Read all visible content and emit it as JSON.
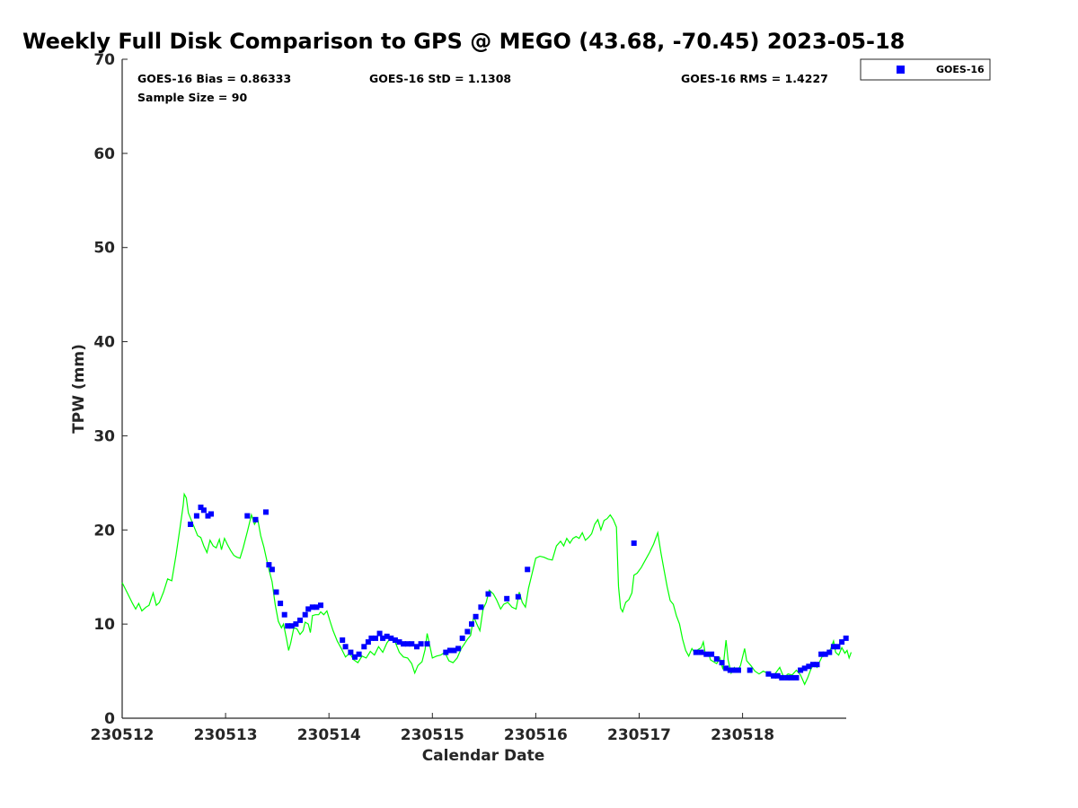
{
  "chart_data": {
    "type": "scatter",
    "title": "Weekly Full Disk Comparison to GPS @ MEGO (43.68, -70.45) 2023-05-18",
    "xlabel": "Calendar Date",
    "ylabel": "TPW (mm)",
    "xlim": [
      0,
      7
    ],
    "ylim": [
      0,
      70
    ],
    "x_ticks": [
      0,
      1,
      2,
      3,
      4,
      5,
      6
    ],
    "x_tick_labels": [
      "230512",
      "230513",
      "230514",
      "230515",
      "230516",
      "230517",
      "230518"
    ],
    "y_ticks": [
      0,
      10,
      20,
      30,
      40,
      50,
      60,
      70
    ],
    "y_tick_labels": [
      "0",
      "10",
      "20",
      "30",
      "40",
      "50",
      "60",
      "70"
    ],
    "grid": false,
    "legend_position": "outside-top-right",
    "stats": {
      "bias": "GOES-16 Bias = 0.86333",
      "std": "GOES-16 StD = 1.1308",
      "rms": "GOES-16 RMS = 1.4227",
      "sample_size": "Sample Size = 90"
    },
    "series": [
      {
        "name": "GOES-16",
        "kind": "points",
        "color": "#0000ff",
        "marker": "square",
        "points": [
          [
            0.66,
            20.6
          ],
          [
            0.72,
            21.5
          ],
          [
            0.76,
            22.4
          ],
          [
            0.79,
            22.1
          ],
          [
            0.83,
            21.5
          ],
          [
            0.86,
            21.7
          ],
          [
            1.21,
            21.5
          ],
          [
            1.29,
            21.1
          ],
          [
            1.39,
            21.9
          ],
          [
            1.42,
            16.3
          ],
          [
            1.45,
            15.8
          ],
          [
            1.49,
            13.4
          ],
          [
            1.53,
            12.2
          ],
          [
            1.57,
            11.0
          ],
          [
            1.6,
            9.8
          ],
          [
            1.64,
            9.8
          ],
          [
            1.68,
            10.0
          ],
          [
            1.72,
            10.4
          ],
          [
            1.77,
            11.0
          ],
          [
            1.8,
            11.6
          ],
          [
            1.84,
            11.8
          ],
          [
            1.88,
            11.8
          ],
          [
            1.92,
            12.0
          ],
          [
            2.13,
            8.3
          ],
          [
            2.16,
            7.6
          ],
          [
            2.21,
            7.0
          ],
          [
            2.25,
            6.5
          ],
          [
            2.29,
            6.8
          ],
          [
            2.34,
            7.6
          ],
          [
            2.38,
            8.1
          ],
          [
            2.41,
            8.5
          ],
          [
            2.45,
            8.5
          ],
          [
            2.49,
            9.0
          ],
          [
            2.52,
            8.5
          ],
          [
            2.56,
            8.7
          ],
          [
            2.6,
            8.5
          ],
          [
            2.64,
            8.3
          ],
          [
            2.68,
            8.1
          ],
          [
            2.72,
            7.9
          ],
          [
            2.76,
            7.9
          ],
          [
            2.8,
            7.9
          ],
          [
            2.85,
            7.6
          ],
          [
            2.89,
            7.9
          ],
          [
            2.95,
            7.9
          ],
          [
            3.13,
            7.0
          ],
          [
            3.17,
            7.2
          ],
          [
            3.21,
            7.2
          ],
          [
            3.25,
            7.4
          ],
          [
            3.29,
            8.5
          ],
          [
            3.34,
            9.2
          ],
          [
            3.38,
            10.0
          ],
          [
            3.42,
            10.8
          ],
          [
            3.47,
            11.8
          ],
          [
            3.54,
            13.2
          ],
          [
            3.72,
            12.7
          ],
          [
            3.83,
            12.9
          ],
          [
            3.92,
            15.8
          ],
          [
            4.95,
            18.6
          ],
          [
            5.55,
            7.0
          ],
          [
            5.6,
            7.0
          ],
          [
            5.65,
            6.8
          ],
          [
            5.7,
            6.8
          ],
          [
            5.75,
            6.3
          ],
          [
            5.8,
            5.9
          ],
          [
            5.84,
            5.3
          ],
          [
            5.88,
            5.1
          ],
          [
            5.92,
            5.1
          ],
          [
            5.96,
            5.1
          ],
          [
            6.07,
            5.1
          ],
          [
            6.25,
            4.7
          ],
          [
            6.3,
            4.5
          ],
          [
            6.34,
            4.5
          ],
          [
            6.38,
            4.3
          ],
          [
            6.43,
            4.3
          ],
          [
            6.47,
            4.3
          ],
          [
            6.52,
            4.3
          ],
          [
            6.56,
            5.1
          ],
          [
            6.6,
            5.3
          ],
          [
            6.64,
            5.5
          ],
          [
            6.68,
            5.7
          ],
          [
            6.72,
            5.7
          ],
          [
            6.76,
            6.8
          ],
          [
            6.8,
            6.8
          ],
          [
            6.84,
            7.0
          ],
          [
            6.88,
            7.6
          ],
          [
            6.92,
            7.6
          ],
          [
            6.96,
            8.1
          ],
          [
            7.0,
            8.5
          ]
        ]
      },
      {
        "name": "",
        "kind": "line",
        "color": "#00ff00",
        "points": [
          [
            0.0,
            14.4
          ],
          [
            0.05,
            13.3
          ],
          [
            0.1,
            12.2
          ],
          [
            0.13,
            11.6
          ],
          [
            0.16,
            12.2
          ],
          [
            0.19,
            11.4
          ],
          [
            0.23,
            11.8
          ],
          [
            0.26,
            12.0
          ],
          [
            0.3,
            13.3
          ],
          [
            0.33,
            12.0
          ],
          [
            0.36,
            12.3
          ],
          [
            0.4,
            13.4
          ],
          [
            0.44,
            14.8
          ],
          [
            0.48,
            14.6
          ],
          [
            0.52,
            17.3
          ],
          [
            0.56,
            20.3
          ],
          [
            0.59,
            22.6
          ],
          [
            0.6,
            23.8
          ],
          [
            0.62,
            23.4
          ],
          [
            0.64,
            21.8
          ],
          [
            0.67,
            21.0
          ],
          [
            0.7,
            20.2
          ],
          [
            0.73,
            19.4
          ],
          [
            0.76,
            19.2
          ],
          [
            0.79,
            18.3
          ],
          [
            0.82,
            17.6
          ],
          [
            0.85,
            18.9
          ],
          [
            0.88,
            18.3
          ],
          [
            0.91,
            18.1
          ],
          [
            0.94,
            19.0
          ],
          [
            0.96,
            17.9
          ],
          [
            0.99,
            19.1
          ],
          [
            1.02,
            18.4
          ],
          [
            1.05,
            17.8
          ],
          [
            1.08,
            17.3
          ],
          [
            1.11,
            17.1
          ],
          [
            1.14,
            17.0
          ],
          [
            1.17,
            18.1
          ],
          [
            1.21,
            19.8
          ],
          [
            1.25,
            21.6
          ],
          [
            1.28,
            20.6
          ],
          [
            1.31,
            21.2
          ],
          [
            1.34,
            19.4
          ],
          [
            1.37,
            18.2
          ],
          [
            1.41,
            16.2
          ],
          [
            1.45,
            14.5
          ],
          [
            1.48,
            12.1
          ],
          [
            1.51,
            10.3
          ],
          [
            1.54,
            9.6
          ],
          [
            1.56,
            10.0
          ],
          [
            1.59,
            8.4
          ],
          [
            1.61,
            7.2
          ],
          [
            1.63,
            8.0
          ],
          [
            1.66,
            9.6
          ],
          [
            1.69,
            9.5
          ],
          [
            1.72,
            8.9
          ],
          [
            1.75,
            9.3
          ],
          [
            1.77,
            10.2
          ],
          [
            1.8,
            10.0
          ],
          [
            1.82,
            9.1
          ],
          [
            1.84,
            10.9
          ],
          [
            1.87,
            11.0
          ],
          [
            1.9,
            11.0
          ],
          [
            1.92,
            11.3
          ],
          [
            1.95,
            11.0
          ],
          [
            1.98,
            11.4
          ],
          [
            2.01,
            10.3
          ],
          [
            2.04,
            9.3
          ],
          [
            2.08,
            8.2
          ],
          [
            2.12,
            7.4
          ],
          [
            2.16,
            6.5
          ],
          [
            2.2,
            6.9
          ],
          [
            2.24,
            6.2
          ],
          [
            2.28,
            5.9
          ],
          [
            2.32,
            6.6
          ],
          [
            2.36,
            6.4
          ],
          [
            2.4,
            7.1
          ],
          [
            2.44,
            6.7
          ],
          [
            2.48,
            7.6
          ],
          [
            2.52,
            7.0
          ],
          [
            2.56,
            8.0
          ],
          [
            2.6,
            8.6
          ],
          [
            2.64,
            8.1
          ],
          [
            2.68,
            7.0
          ],
          [
            2.72,
            6.5
          ],
          [
            2.76,
            6.4
          ],
          [
            2.8,
            5.8
          ],
          [
            2.83,
            4.8
          ],
          [
            2.86,
            5.6
          ],
          [
            2.9,
            6.0
          ],
          [
            2.93,
            7.3
          ],
          [
            2.95,
            9.0
          ],
          [
            2.97,
            8.0
          ],
          [
            3.0,
            6.4
          ],
          [
            3.04,
            6.6
          ],
          [
            3.08,
            6.7
          ],
          [
            3.12,
            7.0
          ],
          [
            3.16,
            6.1
          ],
          [
            3.2,
            5.9
          ],
          [
            3.24,
            6.4
          ],
          [
            3.28,
            7.4
          ],
          [
            3.31,
            7.9
          ],
          [
            3.34,
            8.4
          ],
          [
            3.37,
            8.8
          ],
          [
            3.4,
            10.8
          ],
          [
            3.43,
            10.0
          ],
          [
            3.46,
            9.3
          ],
          [
            3.49,
            11.6
          ],
          [
            3.52,
            12.3
          ],
          [
            3.55,
            13.6
          ],
          [
            3.59,
            13.2
          ],
          [
            3.62,
            12.6
          ],
          [
            3.66,
            11.6
          ],
          [
            3.69,
            12.1
          ],
          [
            3.73,
            12.3
          ],
          [
            3.77,
            11.8
          ],
          [
            3.81,
            11.6
          ],
          [
            3.84,
            13.4
          ],
          [
            3.87,
            12.3
          ],
          [
            3.9,
            11.8
          ],
          [
            3.93,
            13.8
          ],
          [
            3.97,
            15.6
          ],
          [
            4.0,
            17.0
          ],
          [
            4.04,
            17.2
          ],
          [
            4.08,
            17.1
          ],
          [
            4.12,
            16.9
          ],
          [
            4.16,
            16.8
          ],
          [
            4.2,
            18.3
          ],
          [
            4.24,
            18.8
          ],
          [
            4.27,
            18.3
          ],
          [
            4.3,
            19.1
          ],
          [
            4.33,
            18.6
          ],
          [
            4.36,
            19.1
          ],
          [
            4.39,
            19.3
          ],
          [
            4.42,
            19.1
          ],
          [
            4.45,
            19.7
          ],
          [
            4.48,
            18.9
          ],
          [
            4.51,
            19.2
          ],
          [
            4.54,
            19.6
          ],
          [
            4.57,
            20.6
          ],
          [
            4.6,
            21.1
          ],
          [
            4.63,
            20.0
          ],
          [
            4.66,
            21.0
          ],
          [
            4.69,
            21.2
          ],
          [
            4.72,
            21.6
          ],
          [
            4.75,
            21.1
          ],
          [
            4.78,
            20.3
          ],
          [
            4.8,
            14.0
          ],
          [
            4.82,
            11.7
          ],
          [
            4.84,
            11.3
          ],
          [
            4.87,
            12.3
          ],
          [
            4.9,
            12.6
          ],
          [
            4.93,
            13.3
          ],
          [
            4.95,
            15.2
          ],
          [
            4.98,
            15.4
          ],
          [
            5.02,
            16.0
          ],
          [
            5.06,
            16.8
          ],
          [
            5.1,
            17.6
          ],
          [
            5.14,
            18.5
          ],
          [
            5.18,
            19.7
          ],
          [
            5.21,
            17.6
          ],
          [
            5.24,
            15.8
          ],
          [
            5.27,
            14.0
          ],
          [
            5.3,
            12.5
          ],
          [
            5.33,
            12.1
          ],
          [
            5.36,
            10.9
          ],
          [
            5.39,
            10.0
          ],
          [
            5.42,
            8.4
          ],
          [
            5.45,
            7.2
          ],
          [
            5.48,
            6.6
          ],
          [
            5.51,
            7.4
          ],
          [
            5.54,
            6.9
          ],
          [
            5.57,
            7.3
          ],
          [
            5.6,
            7.5
          ],
          [
            5.62,
            8.1
          ],
          [
            5.64,
            6.8
          ],
          [
            5.67,
            7.0
          ],
          [
            5.69,
            6.2
          ],
          [
            5.72,
            6.0
          ],
          [
            5.75,
            5.8
          ],
          [
            5.78,
            6.4
          ],
          [
            5.81,
            5.2
          ],
          [
            5.84,
            8.3
          ],
          [
            5.86,
            6.2
          ],
          [
            5.89,
            4.8
          ],
          [
            5.92,
            5.4
          ],
          [
            5.95,
            5.0
          ],
          [
            5.98,
            5.6
          ],
          [
            6.02,
            7.4
          ],
          [
            6.04,
            6.1
          ],
          [
            6.08,
            5.6
          ],
          [
            6.12,
            5.0
          ],
          [
            6.16,
            4.7
          ],
          [
            6.2,
            5.0
          ],
          [
            6.24,
            4.8
          ],
          [
            6.28,
            4.4
          ],
          [
            6.32,
            4.8
          ],
          [
            6.36,
            5.4
          ],
          [
            6.4,
            4.3
          ],
          [
            6.44,
            4.7
          ],
          [
            6.48,
            4.6
          ],
          [
            6.52,
            5.1
          ],
          [
            6.56,
            4.6
          ],
          [
            6.6,
            3.6
          ],
          [
            6.63,
            4.3
          ],
          [
            6.66,
            5.2
          ],
          [
            6.69,
            5.8
          ],
          [
            6.72,
            5.4
          ],
          [
            6.75,
            6.1
          ],
          [
            6.78,
            6.8
          ],
          [
            6.82,
            7.0
          ],
          [
            6.85,
            7.3
          ],
          [
            6.88,
            8.2
          ],
          [
            6.9,
            7.0
          ],
          [
            6.93,
            6.7
          ],
          [
            6.96,
            7.5
          ],
          [
            6.99,
            6.9
          ],
          [
            7.01,
            7.2
          ],
          [
            7.03,
            6.4
          ],
          [
            7.05,
            7.0
          ]
        ]
      }
    ]
  }
}
